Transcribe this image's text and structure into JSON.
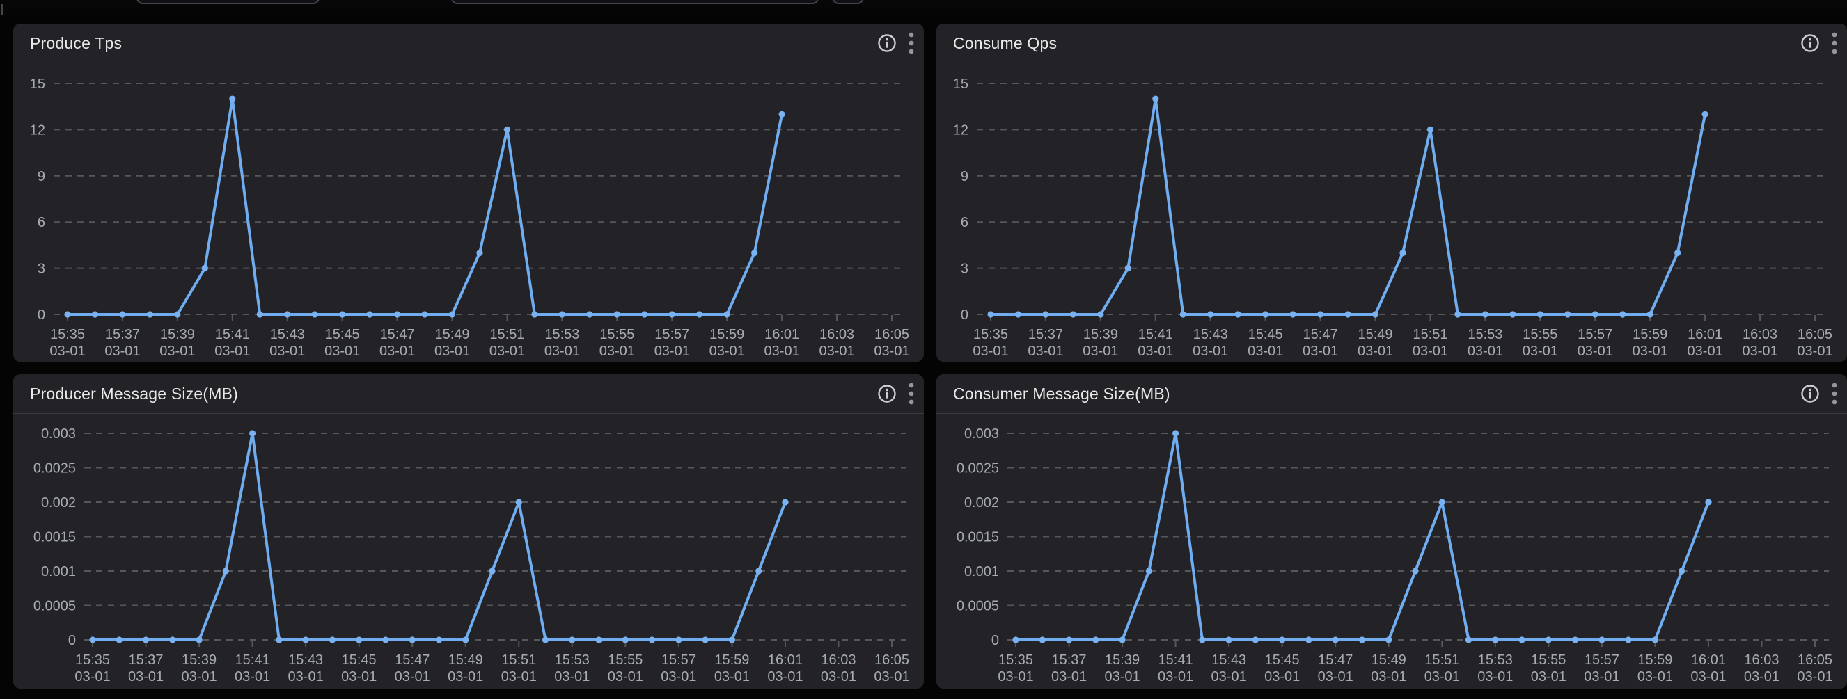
{
  "colors": {
    "page_bg": "#040404",
    "panel_bg": "#232327",
    "line": "#6facf0",
    "point": "#7ab2f1",
    "grid": "#55575b",
    "tick": "#55575b",
    "axis_text": "#a6abb2",
    "title_text": "#e7e8ea",
    "icon": "#cdced2",
    "kebab": "#95969b"
  },
  "panels": [
    {
      "title": "Produce Tps",
      "icons": [
        "info-icon",
        "kebab-menu-icon"
      ]
    },
    {
      "title": "Consume Qps",
      "icons": [
        "info-icon",
        "kebab-menu-icon"
      ]
    },
    {
      "title": "Producer Message Size(MB)",
      "icons": [
        "info-icon",
        "kebab-menu-icon"
      ]
    },
    {
      "title": "Consumer Message Size(MB)",
      "icons": [
        "info-icon",
        "kebab-menu-icon"
      ]
    }
  ],
  "time_axis": {
    "tick_labels": [
      "15:35",
      "15:37",
      "15:39",
      "15:41",
      "15:43",
      "15:45",
      "15:47",
      "15:49",
      "15:51",
      "15:53",
      "15:55",
      "15:57",
      "15:59",
      "16:01",
      "16:03",
      "16:05"
    ],
    "date_label": "03-01",
    "points_start": "15:35",
    "points_end": "16:01",
    "points_interval_minutes": 1
  },
  "chart_data": [
    {
      "title": "Produce Tps",
      "type": "line",
      "x_ticks": [
        "15:35",
        "15:37",
        "15:39",
        "15:41",
        "15:43",
        "15:45",
        "15:47",
        "15:49",
        "15:51",
        "15:53",
        "15:55",
        "15:57",
        "15:59",
        "16:01",
        "16:03",
        "16:05"
      ],
      "x_date": "03-01",
      "x_start": "15:35",
      "x_interval_minutes": 1,
      "values": [
        0,
        0,
        0,
        0,
        0,
        3,
        14,
        0,
        0,
        0,
        0,
        0,
        0,
        0,
        0,
        4,
        12,
        0,
        0,
        0,
        0,
        0,
        0,
        0,
        0,
        4,
        13
      ],
      "y_ticks": [
        "0",
        "3",
        "6",
        "9",
        "12",
        "15"
      ],
      "ylim": [
        0,
        15
      ],
      "grid": "dashed",
      "legend": "none"
    },
    {
      "title": "Consume Qps",
      "type": "line",
      "x_ticks": [
        "15:35",
        "15:37",
        "15:39",
        "15:41",
        "15:43",
        "15:45",
        "15:47",
        "15:49",
        "15:51",
        "15:53",
        "15:55",
        "15:57",
        "15:59",
        "16:01",
        "16:03",
        "16:05"
      ],
      "x_date": "03-01",
      "x_start": "15:35",
      "x_interval_minutes": 1,
      "values": [
        0,
        0,
        0,
        0,
        0,
        3,
        14,
        0,
        0,
        0,
        0,
        0,
        0,
        0,
        0,
        4,
        12,
        0,
        0,
        0,
        0,
        0,
        0,
        0,
        0,
        4,
        13
      ],
      "y_ticks": [
        "0",
        "3",
        "6",
        "9",
        "12",
        "15"
      ],
      "ylim": [
        0,
        15
      ],
      "grid": "dashed",
      "legend": "none"
    },
    {
      "title": "Producer Message Size(MB)",
      "type": "line",
      "x_ticks": [
        "15:35",
        "15:37",
        "15:39",
        "15:41",
        "15:43",
        "15:45",
        "15:47",
        "15:49",
        "15:51",
        "15:53",
        "15:55",
        "15:57",
        "15:59",
        "16:01",
        "16:03",
        "16:05"
      ],
      "x_date": "03-01",
      "x_start": "15:35",
      "x_interval_minutes": 1,
      "values": [
        0,
        0,
        0,
        0,
        0,
        0.001,
        0.003,
        0,
        0,
        0,
        0,
        0,
        0,
        0,
        0,
        0.001,
        0.002,
        0,
        0,
        0,
        0,
        0,
        0,
        0,
        0,
        0.001,
        0.002
      ],
      "y_ticks": [
        "0",
        "0.0005",
        "0.001",
        "0.0015",
        "0.002",
        "0.0025",
        "0.003"
      ],
      "ylim": [
        0,
        0.003
      ],
      "grid": "dashed",
      "legend": "none"
    },
    {
      "title": "Consumer Message Size(MB)",
      "type": "line",
      "x_ticks": [
        "15:35",
        "15:37",
        "15:39",
        "15:41",
        "15:43",
        "15:45",
        "15:47",
        "15:49",
        "15:51",
        "15:53",
        "15:55",
        "15:57",
        "15:59",
        "16:01",
        "16:03",
        "16:05"
      ],
      "x_date": "03-01",
      "x_start": "15:35",
      "x_interval_minutes": 1,
      "values": [
        0,
        0,
        0,
        0,
        0,
        0.001,
        0.003,
        0,
        0,
        0,
        0,
        0,
        0,
        0,
        0,
        0.001,
        0.002,
        0,
        0,
        0,
        0,
        0,
        0,
        0,
        0,
        0.001,
        0.002
      ],
      "y_ticks": [
        "0",
        "0.0005",
        "0.001",
        "0.0015",
        "0.002",
        "0.0025",
        "0.003"
      ],
      "ylim": [
        0,
        0.003
      ],
      "grid": "dashed",
      "legend": "none"
    }
  ]
}
